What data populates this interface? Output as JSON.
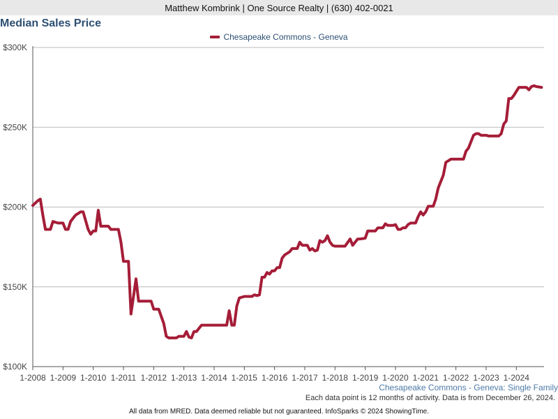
{
  "header": {
    "agent_line": "Matthew Kombrink | One Source Realty | (630) 402-0021"
  },
  "chart_title": "Median Sales Price",
  "source_label": "Chesapeake Commons - Geneva: Single Family",
  "footer_note": "Each data point is 12 months of activity. Data is from December 26, 2024.",
  "credits": "All data from MRED. Data deemed reliable but not guaranteed. InfoSparks © 2024 ShowingTime.",
  "colors": {
    "series": "#a51d38",
    "title": "#2d4f73",
    "grid": "#bbbbbb"
  },
  "chart_data": {
    "type": "line",
    "title": "Median Sales Price",
    "xlabel": "",
    "ylabel": "",
    "grid": true,
    "legend_position": "top-center",
    "ylim": [
      100000,
      300000
    ],
    "xlim": [
      "2008-01",
      "2024-12"
    ],
    "y_ticks": [
      {
        "value": 300000,
        "label": "$300K"
      },
      {
        "value": 250000,
        "label": "$250K"
      },
      {
        "value": 200000,
        "label": "$200K"
      },
      {
        "value": 150000,
        "label": "$150K"
      },
      {
        "value": 100000,
        "label": "$100K"
      }
    ],
    "x_ticks": [
      {
        "value": "2008-01",
        "label": "1-2008"
      },
      {
        "value": "2009-01",
        "label": "1-2009"
      },
      {
        "value": "2010-01",
        "label": "1-2010"
      },
      {
        "value": "2011-01",
        "label": "1-2011"
      },
      {
        "value": "2012-01",
        "label": "1-2012"
      },
      {
        "value": "2013-01",
        "label": "1-2013"
      },
      {
        "value": "2014-01",
        "label": "1-2014"
      },
      {
        "value": "2015-01",
        "label": "1-2015"
      },
      {
        "value": "2016-01",
        "label": "1-2016"
      },
      {
        "value": "2017-01",
        "label": "1-2017"
      },
      {
        "value": "2018-01",
        "label": "1-2018"
      },
      {
        "value": "2019-01",
        "label": "1-2019"
      },
      {
        "value": "2020-01",
        "label": "1-2020"
      },
      {
        "value": "2021-01",
        "label": "1-2021"
      },
      {
        "value": "2022-01",
        "label": "1-2022"
      },
      {
        "value": "2023-01",
        "label": "1-2023"
      },
      {
        "value": "2024-01",
        "label": "1-2024"
      }
    ],
    "series": [
      {
        "name": "Chesapeake Commons - Geneva",
        "color": "#a51d38",
        "points": [
          {
            "x": "2008-01",
            "y": 201000
          },
          {
            "x": "2008-03",
            "y": 204000
          },
          {
            "x": "2008-04",
            "y": 205000
          },
          {
            "x": "2008-05",
            "y": 195000
          },
          {
            "x": "2008-06",
            "y": 186000
          },
          {
            "x": "2008-08",
            "y": 186000
          },
          {
            "x": "2008-09",
            "y": 191000
          },
          {
            "x": "2008-11",
            "y": 190000
          },
          {
            "x": "2009-01",
            "y": 190000
          },
          {
            "x": "2009-02",
            "y": 186000
          },
          {
            "x": "2009-03",
            "y": 186000
          },
          {
            "x": "2009-04",
            "y": 191000
          },
          {
            "x": "2009-06",
            "y": 195000
          },
          {
            "x": "2009-08",
            "y": 197000
          },
          {
            "x": "2009-09",
            "y": 197000
          },
          {
            "x": "2009-11",
            "y": 186000
          },
          {
            "x": "2009-12",
            "y": 183000
          },
          {
            "x": "2010-01",
            "y": 185000
          },
          {
            "x": "2010-02",
            "y": 185000
          },
          {
            "x": "2010-03",
            "y": 198000
          },
          {
            "x": "2010-04",
            "y": 188000
          },
          {
            "x": "2010-07",
            "y": 188000
          },
          {
            "x": "2010-08",
            "y": 186000
          },
          {
            "x": "2010-11",
            "y": 186000
          },
          {
            "x": "2010-12",
            "y": 178000
          },
          {
            "x": "2011-01",
            "y": 166000
          },
          {
            "x": "2011-03",
            "y": 166000
          },
          {
            "x": "2011-04",
            "y": 133000
          },
          {
            "x": "2011-06",
            "y": 155000
          },
          {
            "x": "2011-07",
            "y": 141000
          },
          {
            "x": "2011-12",
            "y": 141000
          },
          {
            "x": "2012-01",
            "y": 136000
          },
          {
            "x": "2012-03",
            "y": 136000
          },
          {
            "x": "2012-05",
            "y": 127000
          },
          {
            "x": "2012-06",
            "y": 119000
          },
          {
            "x": "2012-07",
            "y": 118000
          },
          {
            "x": "2012-10",
            "y": 118000
          },
          {
            "x": "2012-11",
            "y": 119000
          },
          {
            "x": "2013-01",
            "y": 119000
          },
          {
            "x": "2013-02",
            "y": 122000
          },
          {
            "x": "2013-03",
            "y": 118500
          },
          {
            "x": "2013-04",
            "y": 118000
          },
          {
            "x": "2013-05",
            "y": 122000
          },
          {
            "x": "2013-06",
            "y": 122000
          },
          {
            "x": "2013-08",
            "y": 126000
          },
          {
            "x": "2014-05",
            "y": 126000
          },
          {
            "x": "2014-06",
            "y": 126000
          },
          {
            "x": "2014-07",
            "y": 135000
          },
          {
            "x": "2014-08",
            "y": 126000
          },
          {
            "x": "2014-09",
            "y": 126000
          },
          {
            "x": "2014-10",
            "y": 138000
          },
          {
            "x": "2014-11",
            "y": 143000
          },
          {
            "x": "2015-01",
            "y": 144000
          },
          {
            "x": "2015-04",
            "y": 144000
          },
          {
            "x": "2015-05",
            "y": 145000
          },
          {
            "x": "2015-06",
            "y": 144500
          },
          {
            "x": "2015-07",
            "y": 145000
          },
          {
            "x": "2015-08",
            "y": 156000
          },
          {
            "x": "2015-09",
            "y": 156000
          },
          {
            "x": "2015-10",
            "y": 159000
          },
          {
            "x": "2015-11",
            "y": 158000
          },
          {
            "x": "2015-12",
            "y": 160000
          },
          {
            "x": "2016-01",
            "y": 160000
          },
          {
            "x": "2016-02",
            "y": 162000
          },
          {
            "x": "2016-03",
            "y": 162000
          },
          {
            "x": "2016-04",
            "y": 168000
          },
          {
            "x": "2016-05",
            "y": 170000
          },
          {
            "x": "2016-07",
            "y": 172000
          },
          {
            "x": "2016-08",
            "y": 174000
          },
          {
            "x": "2016-10",
            "y": 174000
          },
          {
            "x": "2016-11",
            "y": 178000
          },
          {
            "x": "2016-12",
            "y": 176000
          },
          {
            "x": "2017-02",
            "y": 176000
          },
          {
            "x": "2017-03",
            "y": 173000
          },
          {
            "x": "2017-04",
            "y": 174000
          },
          {
            "x": "2017-05",
            "y": 172500
          },
          {
            "x": "2017-06",
            "y": 173000
          },
          {
            "x": "2017-07",
            "y": 179000
          },
          {
            "x": "2017-08",
            "y": 178000
          },
          {
            "x": "2017-09",
            "y": 179000
          },
          {
            "x": "2017-10",
            "y": 182000
          },
          {
            "x": "2017-11",
            "y": 178000
          },
          {
            "x": "2017-12",
            "y": 176000
          },
          {
            "x": "2018-01",
            "y": 175500
          },
          {
            "x": "2018-05",
            "y": 175500
          },
          {
            "x": "2018-07",
            "y": 180000
          },
          {
            "x": "2018-08",
            "y": 176000
          },
          {
            "x": "2018-10",
            "y": 180000
          },
          {
            "x": "2018-11",
            "y": 180000
          },
          {
            "x": "2019-01",
            "y": 180500
          },
          {
            "x": "2019-02",
            "y": 185000
          },
          {
            "x": "2019-05",
            "y": 185000
          },
          {
            "x": "2019-06",
            "y": 187000
          },
          {
            "x": "2019-08",
            "y": 187000
          },
          {
            "x": "2019-09",
            "y": 189500
          },
          {
            "x": "2019-10",
            "y": 188500
          },
          {
            "x": "2019-12",
            "y": 188500
          },
          {
            "x": "2020-01",
            "y": 189000
          },
          {
            "x": "2020-02",
            "y": 186000
          },
          {
            "x": "2020-03",
            "y": 186000
          },
          {
            "x": "2020-04",
            "y": 187000
          },
          {
            "x": "2020-05",
            "y": 187000
          },
          {
            "x": "2020-06",
            "y": 189000
          },
          {
            "x": "2020-07",
            "y": 190000
          },
          {
            "x": "2020-09",
            "y": 190000
          },
          {
            "x": "2020-10",
            "y": 194000
          },
          {
            "x": "2020-11",
            "y": 197000
          },
          {
            "x": "2020-12",
            "y": 195000
          },
          {
            "x": "2021-01",
            "y": 197000
          },
          {
            "x": "2021-02",
            "y": 200500
          },
          {
            "x": "2021-04",
            "y": 200500
          },
          {
            "x": "2021-05",
            "y": 205000
          },
          {
            "x": "2021-06",
            "y": 212000
          },
          {
            "x": "2021-08",
            "y": 220000
          },
          {
            "x": "2021-09",
            "y": 228000
          },
          {
            "x": "2021-11",
            "y": 230000
          },
          {
            "x": "2022-01",
            "y": 230000
          },
          {
            "x": "2022-03",
            "y": 230000
          },
          {
            "x": "2022-04",
            "y": 230000
          },
          {
            "x": "2022-05",
            "y": 235000
          },
          {
            "x": "2022-06",
            "y": 237000
          },
          {
            "x": "2022-07",
            "y": 241000
          },
          {
            "x": "2022-08",
            "y": 245000
          },
          {
            "x": "2022-09",
            "y": 246000
          },
          {
            "x": "2022-10",
            "y": 246000
          },
          {
            "x": "2022-11",
            "y": 245000
          },
          {
            "x": "2023-01",
            "y": 245000
          },
          {
            "x": "2023-02",
            "y": 244500
          },
          {
            "x": "2023-06",
            "y": 244500
          },
          {
            "x": "2023-07",
            "y": 246000
          },
          {
            "x": "2023-08",
            "y": 252000
          },
          {
            "x": "2023-09",
            "y": 254000
          },
          {
            "x": "2023-10",
            "y": 268000
          },
          {
            "x": "2023-11",
            "y": 268000
          },
          {
            "x": "2023-12",
            "y": 270000
          },
          {
            "x": "2024-02",
            "y": 275000
          },
          {
            "x": "2024-05",
            "y": 275000
          },
          {
            "x": "2024-06",
            "y": 273500
          },
          {
            "x": "2024-07",
            "y": 275500
          },
          {
            "x": "2024-08",
            "y": 276000
          },
          {
            "x": "2024-09",
            "y": 275500
          },
          {
            "x": "2024-11",
            "y": 275000
          }
        ]
      }
    ]
  }
}
